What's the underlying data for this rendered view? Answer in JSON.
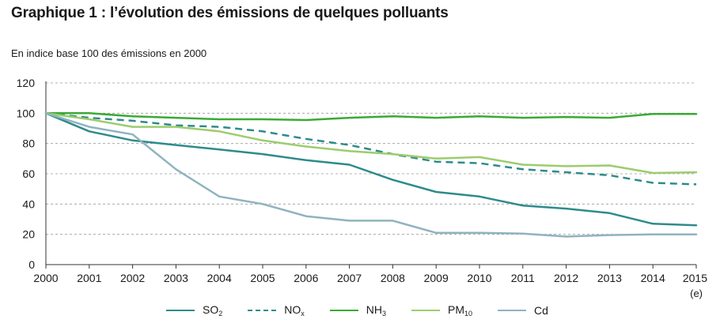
{
  "chart_data": {
    "type": "line",
    "title": "Graphique 1 : l’évolution des émissions de quelques polluants",
    "subtitle": "En indice base 100 des émissions en 2000",
    "x": [
      "2000",
      "2001",
      "2002",
      "2003",
      "2004",
      "2005",
      "2006",
      "2007",
      "2008",
      "2009",
      "2010",
      "2011",
      "2012",
      "2013",
      "2014",
      "2015"
    ],
    "x_note": "(e)",
    "yticks": [
      "0",
      "20",
      "40",
      "60",
      "80",
      "100",
      "120"
    ],
    "ylim": [
      0,
      120
    ],
    "grid": "horizontal dashed",
    "legend_position": "bottom",
    "series": [
      {
        "name": "SO",
        "sub": "2",
        "color": "#2e8b8b",
        "dash": false,
        "values": [
          100,
          88,
          82,
          79,
          76,
          73,
          69,
          66,
          56,
          48,
          45,
          39,
          37,
          34,
          27,
          26
        ]
      },
      {
        "name": "NO",
        "sub": "x",
        "color": "#2e8b8b",
        "dash": true,
        "values": [
          100,
          97,
          95,
          92,
          91,
          88,
          83,
          79,
          73,
          68,
          67,
          63,
          61,
          59,
          54,
          53
        ]
      },
      {
        "name": "NH",
        "sub": "3",
        "color": "#3aaa35",
        "dash": false,
        "values": [
          100,
          100,
          98,
          97,
          96,
          96,
          95.5,
          97,
          98,
          97,
          98,
          97,
          97.5,
          97,
          99.5,
          99.5
        ]
      },
      {
        "name": "PM",
        "sub": "10",
        "color": "#9ccc6e",
        "dash": false,
        "values": [
          100,
          96,
          91,
          91,
          88,
          82,
          78,
          75,
          73,
          70,
          71,
          66,
          65,
          65.5,
          60.5,
          61
        ]
      },
      {
        "name": "Cd",
        "sub": "",
        "color": "#8fb3bf",
        "dash": false,
        "values": [
          100,
          91,
          86,
          63,
          45,
          40,
          32,
          29,
          29,
          21,
          21,
          20.5,
          18.5,
          19.5,
          20,
          20
        ]
      }
    ]
  }
}
